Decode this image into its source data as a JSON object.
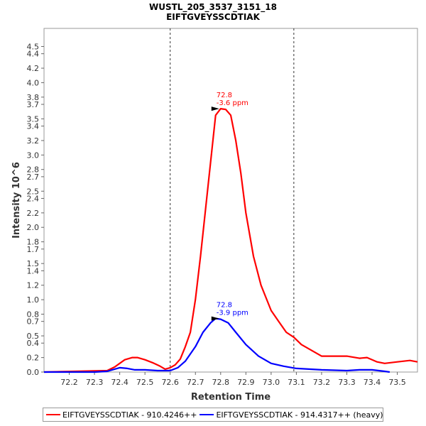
{
  "chart_data": {
    "type": "line",
    "title": "WUSTL_205_3537_3151_18",
    "subtitle": "EIFTGVEYSSCDTIAK",
    "xlabel": "Retention Time",
    "ylabel": "Intensity 10^6",
    "xlim": [
      72.1,
      73.58
    ],
    "ylim": [
      0,
      4.75
    ],
    "x_ticks": [
      "72.2",
      "72.3",
      "72.4",
      "72.5",
      "72.6",
      "72.7",
      "72.8",
      "72.9",
      "73.0",
      "73.1",
      "73.2",
      "73.3",
      "73.4",
      "73.5"
    ],
    "y_ticks": [
      "0.0",
      "0.2",
      "0.4",
      "0.5",
      "0.7",
      "0.8",
      "1.0",
      "1.2",
      "1.4",
      "1.5",
      "1.7",
      "1.8",
      "2.0",
      "2.2",
      "2.4",
      "2.5",
      "2.7",
      "2.8",
      "3.0",
      "3.2",
      "3.4",
      "3.5",
      "3.7",
      "3.8",
      "4.0",
      "4.2",
      "4.4",
      "4.5"
    ],
    "vlines": [
      72.6,
      73.09
    ],
    "grid": false,
    "legend_position": "bottom",
    "series": [
      {
        "name": "EIFTGVEYSSCDTIAK - 910.4246++",
        "color": "#ff0000",
        "x": [
          72.1,
          72.35,
          72.38,
          72.4,
          72.42,
          72.45,
          72.47,
          72.5,
          72.53,
          72.56,
          72.58,
          72.6,
          72.62,
          72.64,
          72.66,
          72.68,
          72.7,
          72.72,
          72.74,
          72.76,
          72.78,
          72.8,
          72.82,
          72.84,
          72.86,
          72.88,
          72.9,
          72.93,
          72.96,
          73.0,
          73.03,
          73.06,
          73.09,
          73.12,
          73.15,
          73.2,
          73.25,
          73.3,
          73.35,
          73.38,
          73.42,
          73.45,
          73.5,
          73.55,
          73.58
        ],
        "y": [
          0.0,
          0.02,
          0.07,
          0.12,
          0.17,
          0.2,
          0.2,
          0.17,
          0.13,
          0.08,
          0.04,
          0.06,
          0.1,
          0.18,
          0.35,
          0.55,
          1.0,
          1.6,
          2.25,
          2.9,
          3.55,
          3.64,
          3.63,
          3.55,
          3.2,
          2.75,
          2.2,
          1.6,
          1.2,
          0.85,
          0.7,
          0.55,
          0.48,
          0.38,
          0.32,
          0.22,
          0.22,
          0.22,
          0.19,
          0.2,
          0.14,
          0.12,
          0.14,
          0.16,
          0.14
        ]
      },
      {
        "name": "EIFTGVEYSSCDTIAK - 914.4317++ (heavy)",
        "color": "#0000ff",
        "x": [
          72.1,
          72.3,
          72.35,
          72.38,
          72.4,
          72.43,
          72.46,
          72.5,
          72.55,
          72.6,
          72.63,
          72.66,
          72.7,
          72.73,
          72.76,
          72.78,
          72.8,
          72.83,
          72.86,
          72.9,
          72.95,
          73.0,
          73.05,
          73.1,
          73.2,
          73.3,
          73.35,
          73.4,
          73.45,
          73.47
        ],
        "y": [
          0.0,
          0.0,
          0.01,
          0.04,
          0.06,
          0.05,
          0.03,
          0.03,
          0.02,
          0.02,
          0.06,
          0.15,
          0.35,
          0.55,
          0.68,
          0.74,
          0.73,
          0.68,
          0.55,
          0.38,
          0.22,
          0.12,
          0.08,
          0.05,
          0.03,
          0.02,
          0.03,
          0.03,
          0.01,
          0.0
        ]
      }
    ],
    "annotations": [
      {
        "series": 0,
        "x": 72.8,
        "y": 3.64,
        "lines": [
          "72.8",
          "-3.6 ppm"
        ]
      },
      {
        "series": 1,
        "x": 72.8,
        "y": 0.74,
        "lines": [
          "72.8",
          "-3.9 ppm"
        ]
      }
    ]
  }
}
